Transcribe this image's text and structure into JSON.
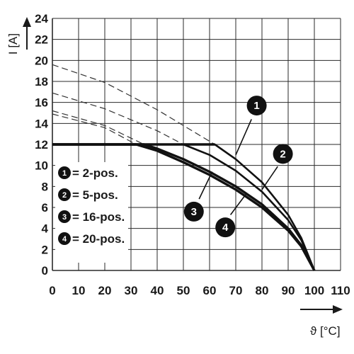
{
  "chart_data": {
    "type": "line",
    "xlabel": "ϑ [°C]",
    "ylabel": "I [A]",
    "xlim": [
      0,
      110
    ],
    "ylim": [
      0,
      24
    ],
    "xticks": [
      0,
      10,
      20,
      30,
      40,
      50,
      60,
      70,
      80,
      90,
      100,
      110
    ],
    "yticks": [
      0,
      2,
      4,
      6,
      8,
      10,
      12,
      14,
      16,
      18,
      20,
      22,
      24
    ],
    "grid": true,
    "legend_placement": "bottom-left",
    "series": [
      {
        "name": "2-pos.",
        "badge": "1",
        "x": [
          0,
          62,
          70,
          80,
          90,
          95,
          100
        ],
        "y": [
          12,
          12,
          10.6,
          8.4,
          5.3,
          3.1,
          0
        ],
        "dashed_x": [
          0,
          20,
          40,
          62
        ],
        "dashed_y": [
          19.6,
          17.9,
          15.3,
          12
        ]
      },
      {
        "name": "5-pos.",
        "badge": "2",
        "x": [
          0,
          50,
          60,
          70,
          80,
          90,
          95,
          100
        ],
        "y": [
          12,
          12,
          11,
          9.5,
          7.5,
          4.8,
          2.9,
          0
        ],
        "dashed_x": [
          0,
          20,
          40,
          50
        ],
        "dashed_y": [
          16.9,
          15.4,
          13.3,
          12
        ]
      },
      {
        "name": "16-pos.",
        "badge": "3",
        "x": [
          0,
          35,
          40,
          50,
          60,
          70,
          80,
          90,
          95,
          100
        ],
        "y": [
          12,
          12,
          11.6,
          10.6,
          9.4,
          8,
          6.3,
          4,
          2.4,
          0
        ],
        "dashed_x": [
          0,
          20,
          35
        ],
        "dashed_y": [
          15.2,
          13.8,
          12
        ]
      },
      {
        "name": "20-pos.",
        "badge": "4",
        "x": [
          0,
          32,
          40,
          50,
          60,
          70,
          80,
          90,
          95,
          100
        ],
        "y": [
          12,
          12,
          11.4,
          10.3,
          9.1,
          7.7,
          6,
          3.8,
          2.3,
          0
        ],
        "dashed_x": [
          0,
          20,
          32
        ],
        "dashed_y": [
          14.9,
          13.6,
          12
        ]
      }
    ],
    "legend": [
      {
        "badge": "1",
        "label": "= 2-pos."
      },
      {
        "badge": "2",
        "label": "= 5-pos."
      },
      {
        "badge": "3",
        "label": "= 16-pos."
      },
      {
        "badge": "4",
        "label": "= 20-pos."
      }
    ]
  }
}
